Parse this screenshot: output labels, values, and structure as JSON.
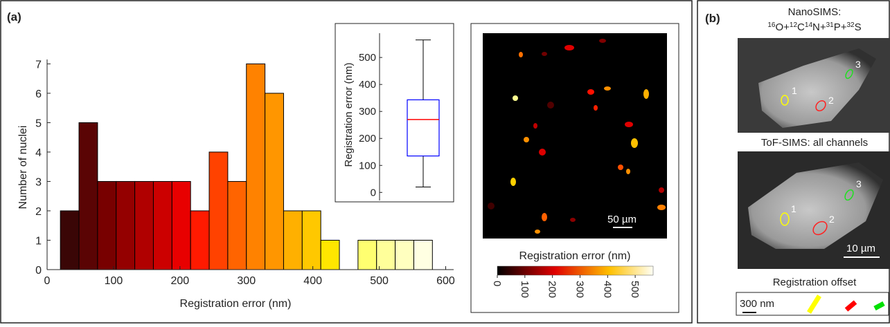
{
  "chart_data": [
    {
      "type": "histogram",
      "panel_label": "(a)",
      "x_label": "Registration error (nm)",
      "y_label": "Number of nuclei",
      "bins": [
        20,
        48,
        76,
        104,
        132,
        160,
        188,
        216,
        244,
        272,
        300,
        328,
        356,
        384,
        412,
        440,
        468,
        496,
        524,
        552,
        580
      ],
      "values": [
        2,
        5,
        3,
        3,
        3,
        3,
        3,
        2,
        4,
        3,
        7,
        6,
        2,
        2,
        1,
        0,
        1,
        1,
        1,
        1
      ],
      "colors": [
        "#3a0606",
        "#5a0404",
        "#780000",
        "#940000",
        "#b00000",
        "#cc0000",
        "#e80000",
        "#ff1a00",
        "#ff4200",
        "#ff6400",
        "#ff8200",
        "#ff9600",
        "#ffb000",
        "#ffc800",
        "#ffe600",
        "#ffff30",
        "#ffff70",
        "#ffff9a",
        "#ffffbf",
        "#ffffe2"
      ],
      "xlim": [
        0,
        612
      ],
      "ylim": [
        0,
        7.15
      ],
      "xticks": [
        0,
        100,
        200,
        300,
        400,
        500,
        600
      ],
      "yticks": [
        0,
        1,
        2,
        3,
        4,
        5,
        6,
        7
      ]
    },
    {
      "type": "box",
      "y_label": "Registration error (nm)",
      "color": "#0000ff",
      "median_color": "#ff0000",
      "min": 20,
      "q1": 135,
      "median": 270,
      "q3": 343,
      "max": 565,
      "ylim": [
        -30,
        590
      ],
      "yticks": [
        0,
        100,
        200,
        300,
        400,
        500
      ]
    },
    {
      "type": "colorbar",
      "label": "Registration error (nm)",
      "scale_bar": "50 µm",
      "range": [
        0,
        565
      ],
      "ticks": [
        0,
        100,
        200,
        300,
        400,
        500
      ]
    }
  ],
  "panel_b": {
    "label": "(b)",
    "nanosims_title": "NanoSIMS:",
    "formula": [
      {
        "sup": "16",
        "text": "O+"
      },
      {
        "sup": "12",
        "text": "C"
      },
      {
        "sup": "14",
        "text": "N+"
      },
      {
        "sup": "31",
        "text": "P+"
      },
      {
        "sup": "32",
        "text": "S"
      }
    ],
    "tof_title": "ToF-SIMS: all channels",
    "scale_bar": "10 µm",
    "offset_title": "Registration offset",
    "offset_scale": "300 nm",
    "rois": [
      "1",
      "2",
      "3"
    ]
  }
}
